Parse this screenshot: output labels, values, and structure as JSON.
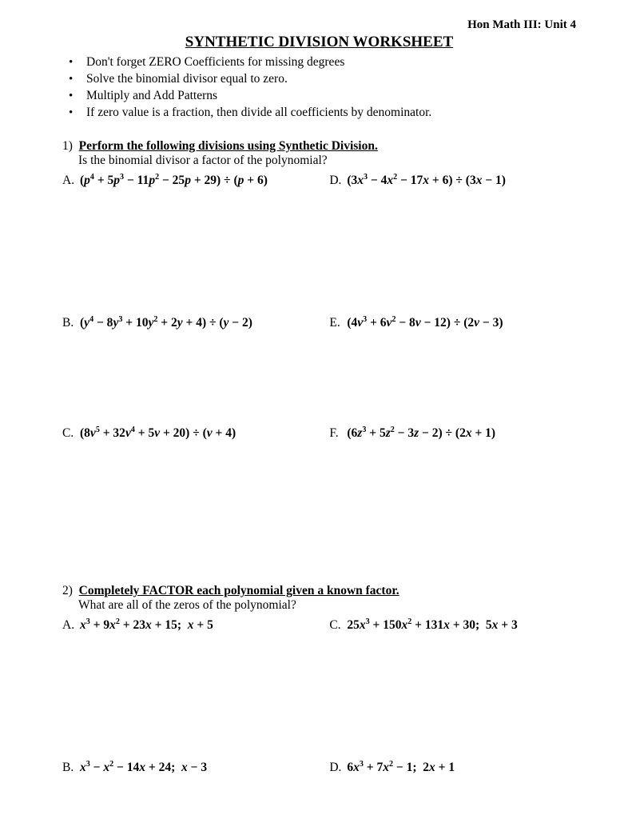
{
  "header": "Hon Math III: Unit 4",
  "title": "SYNTHETIC DIVISION WORKSHEET",
  "notes": [
    "Don't forget ZERO Coefficients for missing degrees",
    "Solve the binomial divisor equal to zero.",
    "Multiply and Add Patterns",
    "If zero value is a fraction, then divide all coefficients by denominator."
  ],
  "section1": {
    "num": "1)",
    "title": "Perform the following divisions using Synthetic Division.",
    "sub": "Is the binomial divisor a factor of the polynomial?",
    "problems": {
      "A": {
        "label": "A.",
        "html": "(<span class='var'>p</span><sup>4</sup> + 5<span class='var'>p</span><sup>3</sup> − 11<span class='var'>p</span><sup>2</sup> − 25<span class='var'>p</span> + 29) ÷ (<span class='var'>p</span> + 6)"
      },
      "D": {
        "label": "D.",
        "html": "(3<span class='var'>x</span><sup>3</sup> − 4<span class='var'>x</span><sup>2</sup> − 17<span class='var'>x</span> + 6) ÷ (3<span class='var'>x</span> − 1)"
      },
      "B": {
        "label": "B.",
        "html": "(<span class='var'>y</span><sup>4</sup> − 8<span class='var'>y</span><sup>3</sup> + 10<span class='var'>y</span><sup>2</sup> + 2<span class='var'>y</span> + 4) ÷ (<span class='var'>y</span> − 2)"
      },
      "E": {
        "label": "E.",
        "html": "(4<span class='var'>v</span><sup>3</sup> + 6<span class='var'>v</span><sup>2</sup> − 8<span class='var'>v</span> − 12) ÷ (2<span class='var'>v</span> − 3)"
      },
      "C": {
        "label": "C.",
        "html": "(8<span class='var'>v</span><sup>5</sup> + 32<span class='var'>v</span><sup>4</sup> + 5<span class='var'>v</span> + 20) ÷ (<span class='var'>v</span> + 4)"
      },
      "F": {
        "label": "F.",
        "html": "(6<span class='var'>z</span><sup>3</sup> + 5<span class='var'>z</span><sup>2</sup> − 3<span class='var'>z</span> − 2) ÷ (2<span class='var'>x</span> + 1)"
      }
    }
  },
  "section2": {
    "num": "2)",
    "title": "Completely FACTOR each polynomial given a known factor.",
    "sub": "What are all of the zeros of the polynomial?",
    "problems": {
      "A": {
        "label": "A.",
        "html": "<span class='var'>x</span><sup>3</sup> + 9<span class='var'>x</span><sup>2</sup> + 23<span class='var'>x</span> + 15;&nbsp;&nbsp;<span class='var'>x</span> + 5"
      },
      "C": {
        "label": "C.",
        "html": "25<span class='var'>x</span><sup>3</sup> + 150<span class='var'>x</span><sup>2</sup> + 131<span class='var'>x</span> + 30;&nbsp;&nbsp;5<span class='var'>x</span> + 3"
      },
      "B": {
        "label": "B.",
        "html": "<span class='var'>x</span><sup>3</sup> − <span class='var'>x</span><sup>2</sup> − 14<span class='var'>x</span> + 24;&nbsp;&nbsp;<span class='var'>x</span> − 3"
      },
      "D": {
        "label": "D.",
        "html": "6<span class='var'>x</span><sup>3</sup> + 7<span class='var'>x</span><sup>2</sup> − 1;&nbsp;&nbsp;2<span class='var'>x</span> + 1"
      }
    }
  }
}
